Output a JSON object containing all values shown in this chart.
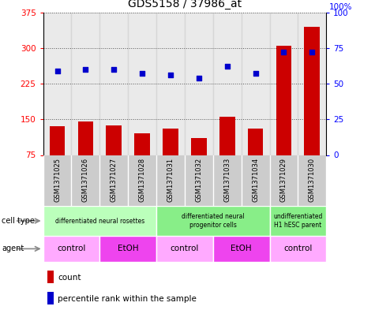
{
  "title": "GDS5158 / 37986_at",
  "samples": [
    "GSM1371025",
    "GSM1371026",
    "GSM1371027",
    "GSM1371028",
    "GSM1371031",
    "GSM1371032",
    "GSM1371033",
    "GSM1371034",
    "GSM1371029",
    "GSM1371030"
  ],
  "counts": [
    135,
    145,
    138,
    120,
    130,
    110,
    155,
    130,
    305,
    345
  ],
  "percentiles": [
    59,
    60,
    60,
    57,
    56,
    54,
    62,
    57,
    72,
    72
  ],
  "ylim_left": [
    75,
    375
  ],
  "ylim_right": [
    0,
    100
  ],
  "yticks_left": [
    75,
    150,
    225,
    300,
    375
  ],
  "yticks_right": [
    0,
    25,
    50,
    75,
    100
  ],
  "bar_color": "#cc0000",
  "dot_color": "#0000cc",
  "cell_type_groups": [
    {
      "label": "differentiated neural rosettes",
      "start": 0,
      "end": 3,
      "color": "#bbffbb"
    },
    {
      "label": "differentiated neural\nprogenitor cells",
      "start": 4,
      "end": 7,
      "color": "#88ee88"
    },
    {
      "label": "undifferentiated\nH1 hESC parent",
      "start": 8,
      "end": 9,
      "color": "#88ee88"
    }
  ],
  "agent_groups": [
    {
      "label": "control",
      "start": 0,
      "end": 1,
      "color": "#ffaaff"
    },
    {
      "label": "EtOH",
      "start": 2,
      "end": 3,
      "color": "#ee44ee"
    },
    {
      "label": "control",
      "start": 4,
      "end": 5,
      "color": "#ffaaff"
    },
    {
      "label": "EtOH",
      "start": 6,
      "end": 7,
      "color": "#ee44ee"
    },
    {
      "label": "control",
      "start": 8,
      "end": 9,
      "color": "#ffaaff"
    }
  ],
  "cell_type_label": "cell type",
  "agent_label": "agent",
  "legend_count_label": "count",
  "legend_pct_label": "percentile rank within the sample",
  "grid_color": "#555555",
  "bg_color": "#ffffff",
  "sample_bg_color": "#cccccc"
}
